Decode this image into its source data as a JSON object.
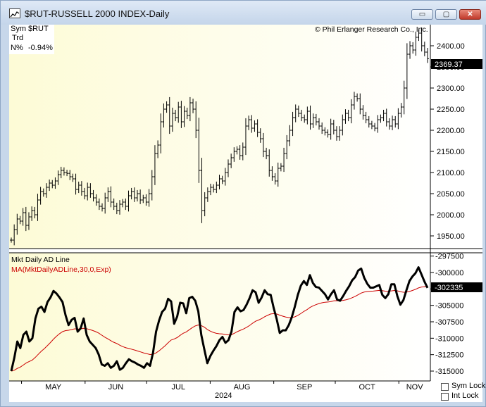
{
  "window": {
    "title": "$RUT-RUSSELL 2000 INDEX-Daily",
    "minimize_glyph": "▭",
    "maximize_glyph": "▢",
    "close_glyph": "✕"
  },
  "info": {
    "sym_label": "Sym",
    "sym_value": "$RUT",
    "trd_label": "Trd",
    "n_label": "N%",
    "n_value": "-0.94%"
  },
  "copyright": "© Phil Erlanger Research Co., Inc.",
  "controls": {
    "sym_lock": "Sym Lock",
    "int_lock": "Int Lock"
  },
  "chart_data": [
    {
      "type": "ohlc",
      "title": "$RUT-RUSSELL 2000 INDEX-Daily",
      "ylim": [
        1920,
        2450
      ],
      "y_ticks": [
        1950,
        2000,
        2050,
        2100,
        2150,
        2200,
        2250,
        2300,
        2350,
        2400
      ],
      "y_tick_labels": [
        "1950.00",
        "2000.00",
        "2050.00",
        "2100.00",
        "2150.00",
        "2200.00",
        "2250.00",
        "2300.00",
        "2350.00",
        "2400.00"
      ],
      "last_value_label": "2369.37",
      "last_value": 2369.37,
      "x_labels": [
        "MAY",
        "JUN",
        "JUL",
        "AUG",
        "SEP",
        "OCT",
        "NOV"
      ],
      "year_label": "2024",
      "ohlc_range": [
        "2024-04-26",
        "2024-11-15"
      ],
      "closes": [
        1940,
        1965,
        1990,
        1985,
        2005,
        1975,
        1995,
        2010,
        2000,
        2035,
        2055,
        2050,
        2065,
        2075,
        2070,
        2080,
        2095,
        2105,
        2100,
        2098,
        2090,
        2085,
        2060,
        2070,
        2055,
        2045,
        2065,
        2050,
        2040,
        2030,
        2020,
        2015,
        2040,
        2055,
        2030,
        2020,
        2010,
        2025,
        2030,
        2020,
        2045,
        2055,
        2040,
        2050,
        2035,
        2040,
        2030,
        2050,
        2090,
        2145,
        2165,
        2220,
        2250,
        2260,
        2210,
        2240,
        2230,
        2255,
        2220,
        2245,
        2235,
        2265,
        2250,
        2200,
        2105,
        2010,
        2040,
        2055,
        2065,
        2060,
        2070,
        2085,
        2080,
        2100,
        2120,
        2135,
        2150,
        2155,
        2140,
        2160,
        2210,
        2225,
        2205,
        2215,
        2195,
        2180,
        2150,
        2140,
        2105,
        2090,
        2080,
        2110,
        2115,
        2145,
        2175,
        2200,
        2230,
        2250,
        2240,
        2230,
        2225,
        2245,
        2215,
        2230,
        2220,
        2210,
        2200,
        2195,
        2190,
        2215,
        2200,
        2185,
        2200,
        2225,
        2240,
        2230,
        2260,
        2280,
        2275,
        2250,
        2235,
        2225,
        2215,
        2210,
        2205,
        2225,
        2230,
        2240,
        2220,
        2210,
        2225,
        2215,
        2240,
        2255,
        2300,
        2380,
        2400,
        2390,
        2420,
        2430,
        2400,
        2385,
        2369.37
      ]
    },
    {
      "type": "line",
      "ylim": [
        -316500,
        -297000
      ],
      "y_ticks": [
        -297500,
        -300000,
        -302500,
        -305000,
        -307500,
        -310000,
        -312500,
        -315000
      ],
      "y_tick_labels": [
        "-297500",
        "-300000",
        "",
        "-305000",
        "-307500",
        "-310000",
        "-312500",
        "-315000"
      ],
      "last_value_label": "-302335",
      "last_value": -302335,
      "series": [
        {
          "name": "Mkt Daily AD Line",
          "color": "#000000",
          "values": [
            -315000,
            -313000,
            -310500,
            -311500,
            -309500,
            -309000,
            -310500,
            -310000,
            -307000,
            -305500,
            -305200,
            -306000,
            -304500,
            -303800,
            -302800,
            -303200,
            -303800,
            -304500,
            -306500,
            -308000,
            -307200,
            -306900,
            -309000,
            -308500,
            -307000,
            -309500,
            -310500,
            -311000,
            -311500,
            -312500,
            -314000,
            -314200,
            -313800,
            -314500,
            -314200,
            -313500,
            -314800,
            -314500,
            -313800,
            -313200,
            -313500,
            -313700,
            -314000,
            -314200,
            -314500,
            -313800,
            -314200,
            -312200,
            -309000,
            -307300,
            -306000,
            -305500,
            -304000,
            -304400,
            -307800,
            -306700,
            -304600,
            -304700,
            -306200,
            -303900,
            -303700,
            -304300,
            -305900,
            -309500,
            -311700,
            -313800,
            -312700,
            -311900,
            -311200,
            -310300,
            -309800,
            -310700,
            -310300,
            -309000,
            -306000,
            -305300,
            -305900,
            -305700,
            -304900,
            -303900,
            -302700,
            -303000,
            -304600,
            -303800,
            -302700,
            -303300,
            -303400,
            -305400,
            -307100,
            -309200,
            -308800,
            -308800,
            -308000,
            -306800,
            -305200,
            -303400,
            -302000,
            -301300,
            -301900,
            -300400,
            -301600,
            -302200,
            -302300,
            -302800,
            -303300,
            -304100,
            -303300,
            -302700,
            -304100,
            -304300,
            -303600,
            -302800,
            -302100,
            -301200,
            -300700,
            -299700,
            -299400,
            -300800,
            -301700,
            -302300,
            -302300,
            -302100,
            -301900,
            -303400,
            -303900,
            -303300,
            -301800,
            -301800,
            -303600,
            -304900,
            -304200,
            -302700,
            -301300,
            -300600,
            -300100,
            -299200,
            -300300,
            -301400,
            -302335
          ]
        },
        {
          "name": "MA(MktDailyADLine,30,0,Exp)",
          "color": "#cc0000"
        }
      ]
    }
  ]
}
